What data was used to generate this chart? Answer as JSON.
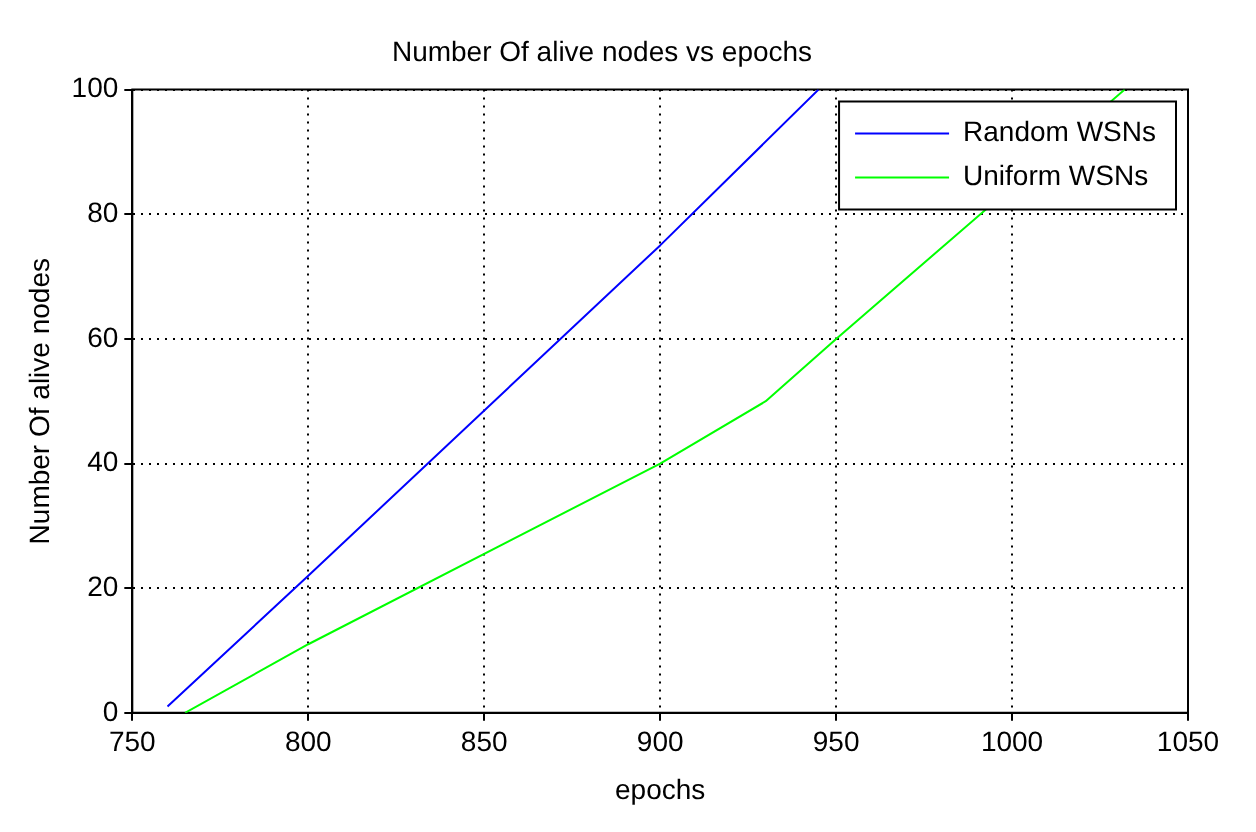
{
  "chart_data": {
    "type": "line",
    "title": "Number Of alive nodes vs epochs",
    "xlabel": "epochs",
    "ylabel": "Number Of alive nodes",
    "series": [
      {
        "name": "Random WSNs",
        "color": "#0000ff",
        "x": [
          760,
          800,
          900,
          945
        ],
        "values": [
          1,
          22,
          75,
          100
        ]
      },
      {
        "name": "Uniform WSNs",
        "color": "#00ff00",
        "x": [
          765,
          800,
          900,
          930,
          950,
          1032
        ],
        "values": [
          0,
          11,
          40,
          50,
          60,
          100
        ]
      }
    ],
    "xlim": [
      750,
      1050
    ],
    "xticks": [
      750,
      800,
      850,
      900,
      950,
      1000,
      1050
    ],
    "ylim": [
      0,
      100
    ],
    "yticks": [
      0,
      20,
      40,
      60,
      80,
      100
    ],
    "grid": true,
    "legend": "top right",
    "marker": "none",
    "line_style": "solid"
  }
}
